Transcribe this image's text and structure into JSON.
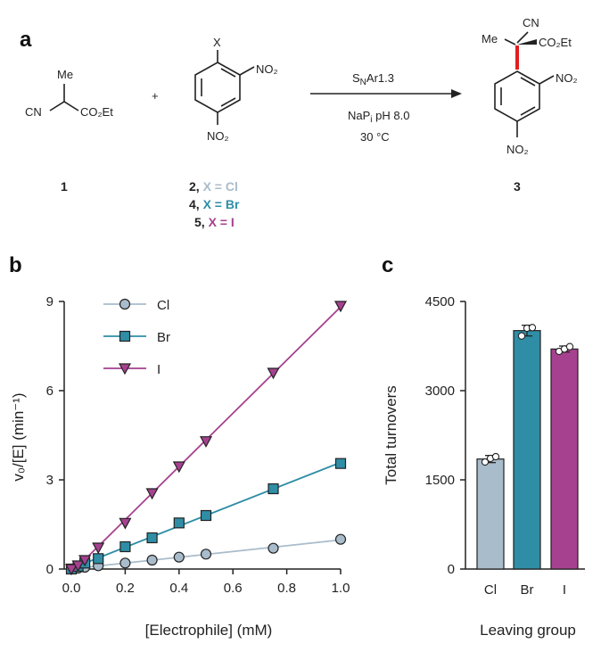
{
  "colors": {
    "cl": "#a9bccb",
    "br": "#2f8ea6",
    "i": "#a6418f",
    "bond_highlight": "#e01f1f"
  },
  "panel_a": {
    "label": "a",
    "me": "Me",
    "cn": "CN",
    "co2et": "CO₂Et",
    "x_sub": "X",
    "no2": "NO₂",
    "plus": "+",
    "conditions": [
      "SₙAr1.3",
      "NaPᵢ pH 8.0",
      "30 °C"
    ],
    "compounds": {
      "c1": "1",
      "c3": "3",
      "c2_num": "2, ",
      "c2_x": "X = Cl",
      "c4_num": "4, ",
      "c4_x": "X = Br",
      "c5_num": "5, ",
      "c5_x": "X = I"
    }
  },
  "chart_data": [
    {
      "panel": "b",
      "type": "line",
      "xlabel": "[Electrophile] (mM)",
      "ylabel": "v₀/[E] (min⁻¹)",
      "xlim": [
        0,
        1.0
      ],
      "ylim": [
        0,
        9
      ],
      "xticks": [
        "0.0",
        "0.2",
        "0.4",
        "0.6",
        "0.8",
        "1.0"
      ],
      "yticks": [
        "0",
        "3",
        "6",
        "9"
      ],
      "legend_position": "top-left",
      "series": [
        {
          "name": "Cl",
          "marker": "circle",
          "x": [
            0,
            0.025,
            0.05,
            0.1,
            0.2,
            0.3,
            0.4,
            0.5,
            0.75,
            1.0
          ],
          "y": [
            0.0,
            0.03,
            0.06,
            0.11,
            0.2,
            0.3,
            0.4,
            0.5,
            0.7,
            1.0
          ]
        },
        {
          "name": "Br",
          "marker": "square",
          "x": [
            0,
            0.025,
            0.05,
            0.1,
            0.2,
            0.3,
            0.4,
            0.5,
            0.75,
            1.0
          ],
          "y": [
            0.0,
            0.09,
            0.2,
            0.35,
            0.75,
            1.05,
            1.55,
            1.8,
            2.7,
            3.55
          ]
        },
        {
          "name": "I",
          "marker": "triangle-down",
          "x": [
            0,
            0.025,
            0.05,
            0.1,
            0.2,
            0.3,
            0.4,
            0.5,
            0.75,
            1.0
          ],
          "y": [
            0.0,
            0.12,
            0.3,
            0.72,
            1.55,
            2.55,
            3.45,
            4.3,
            6.6,
            8.85
          ]
        }
      ]
    },
    {
      "panel": "c",
      "type": "bar",
      "categories": [
        "Cl",
        "Br",
        "I"
      ],
      "values": [
        1850,
        4010,
        3700
      ],
      "errors": [
        60,
        90,
        50
      ],
      "replicates": [
        [
          1800,
          1860,
          1890
        ],
        [
          3920,
          4050,
          4060
        ],
        [
          3660,
          3700,
          3740
        ]
      ],
      "xlabel": "Leaving group",
      "ylabel": "Total turnovers",
      "ylim": [
        0,
        4500
      ],
      "yticks": [
        "0",
        "1500",
        "3000",
        "4500"
      ]
    }
  ],
  "panel_labels": {
    "b": "b",
    "c": "c"
  }
}
